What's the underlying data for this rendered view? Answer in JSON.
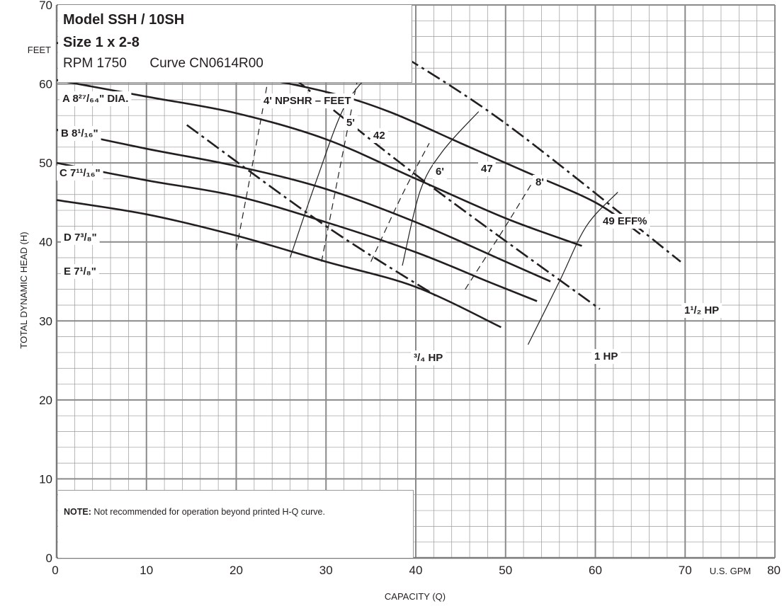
{
  "header": {
    "model": "Model SSH / 10SH",
    "size": "Size 1 x 2-8",
    "rpm": "RPM 1750",
    "curve": "Curve CN0614R00"
  },
  "note": {
    "bold": "NOTE:",
    "text": " Not recommended for operation beyond printed H-Q curve."
  },
  "chart_data": {
    "type": "line",
    "xlabel": "CAPACITY (Q)",
    "ylabel": "TOTAL DYNAMIC HEAD (H)",
    "x_unit": "U.S. GPM",
    "y_unit": "FEET",
    "xlim": [
      0,
      80
    ],
    "ylim": [
      0,
      70
    ],
    "xticks": [
      0,
      10,
      20,
      30,
      40,
      50,
      60,
      70,
      80
    ],
    "yticks": [
      0,
      10,
      20,
      30,
      40,
      50,
      60,
      70
    ],
    "grid": true,
    "impeller_curves": [
      {
        "name": "A 8²⁷/₆₄\" DIA.",
        "x": [
          0,
          10,
          20,
          30,
          37,
          45,
          52,
          60,
          65
        ],
        "y": [
          65.2,
          63,
          61.3,
          59,
          56.5,
          52.5,
          49,
          45,
          41
        ]
      },
      {
        "name": "B 8¹/₁₆\"",
        "x": [
          0,
          10,
          20,
          30,
          40,
          50,
          58.5
        ],
        "y": [
          60.5,
          58.4,
          56.3,
          53,
          48,
          43,
          39.5
        ]
      },
      {
        "name": "C 7¹¹/₁₆\"",
        "x": [
          0,
          10,
          20,
          30,
          40,
          50,
          55
        ],
        "y": [
          54.2,
          51.8,
          49.6,
          46.7,
          42.5,
          37.5,
          35
        ]
      },
      {
        "name": "D 7³/₈\"",
        "x": [
          0,
          10,
          20,
          30,
          40,
          48,
          53.5
        ],
        "y": [
          50,
          47.8,
          45.8,
          42.5,
          38.7,
          35,
          32.5
        ]
      },
      {
        "name": "E 7¹/₈\"",
        "x": [
          0,
          10,
          20,
          30,
          40,
          49.5
        ],
        "y": [
          45.3,
          43.5,
          40.8,
          37.5,
          34.3,
          29.2
        ]
      }
    ],
    "efficiency_curves": [
      {
        "name": "42",
        "x": [
          26,
          29,
          32,
          35
        ],
        "y": [
          38,
          48,
          57,
          61.5
        ]
      },
      {
        "name": "47",
        "x": [
          38.5,
          40.5,
          43,
          47
        ],
        "y": [
          37,
          46.5,
          51.5,
          56.5
        ]
      },
      {
        "name": "49  EFF%",
        "x": [
          52.5,
          56,
          59,
          62.5
        ],
        "y": [
          27,
          35,
          42,
          46.3
        ]
      }
    ],
    "npsh_curves": [
      {
        "name": "4'  NPSHR – FEET",
        "x": [
          20,
          22.5,
          24
        ],
        "y": [
          39,
          54,
          63.5
        ]
      },
      {
        "name": "5'",
        "x": [
          29.5,
          32,
          33.5
        ],
        "y": [
          37.5,
          52,
          60.5
        ]
      },
      {
        "name": "6'",
        "x": [
          35,
          38.5,
          41.5
        ],
        "y": [
          37.5,
          46,
          52.5
        ]
      },
      {
        "name": "8'",
        "x": [
          45.5,
          50,
          53.5
        ],
        "y": [
          34,
          42,
          48.5
        ]
      }
    ],
    "horsepower_curves": [
      {
        "name": "³/₄ HP",
        "x": [
          14.5,
          30,
          42.5
        ],
        "y": [
          54.8,
          42,
          33
        ]
      },
      {
        "name": "1 HP",
        "x": [
          22,
          40,
          60.5
        ],
        "y": [
          64.8,
          48.5,
          31.5
        ]
      },
      {
        "name": "1¹/₂ HP",
        "x": [
          36.5,
          50,
          69.5
        ],
        "y": [
          65,
          55,
          37.5
        ]
      }
    ]
  }
}
